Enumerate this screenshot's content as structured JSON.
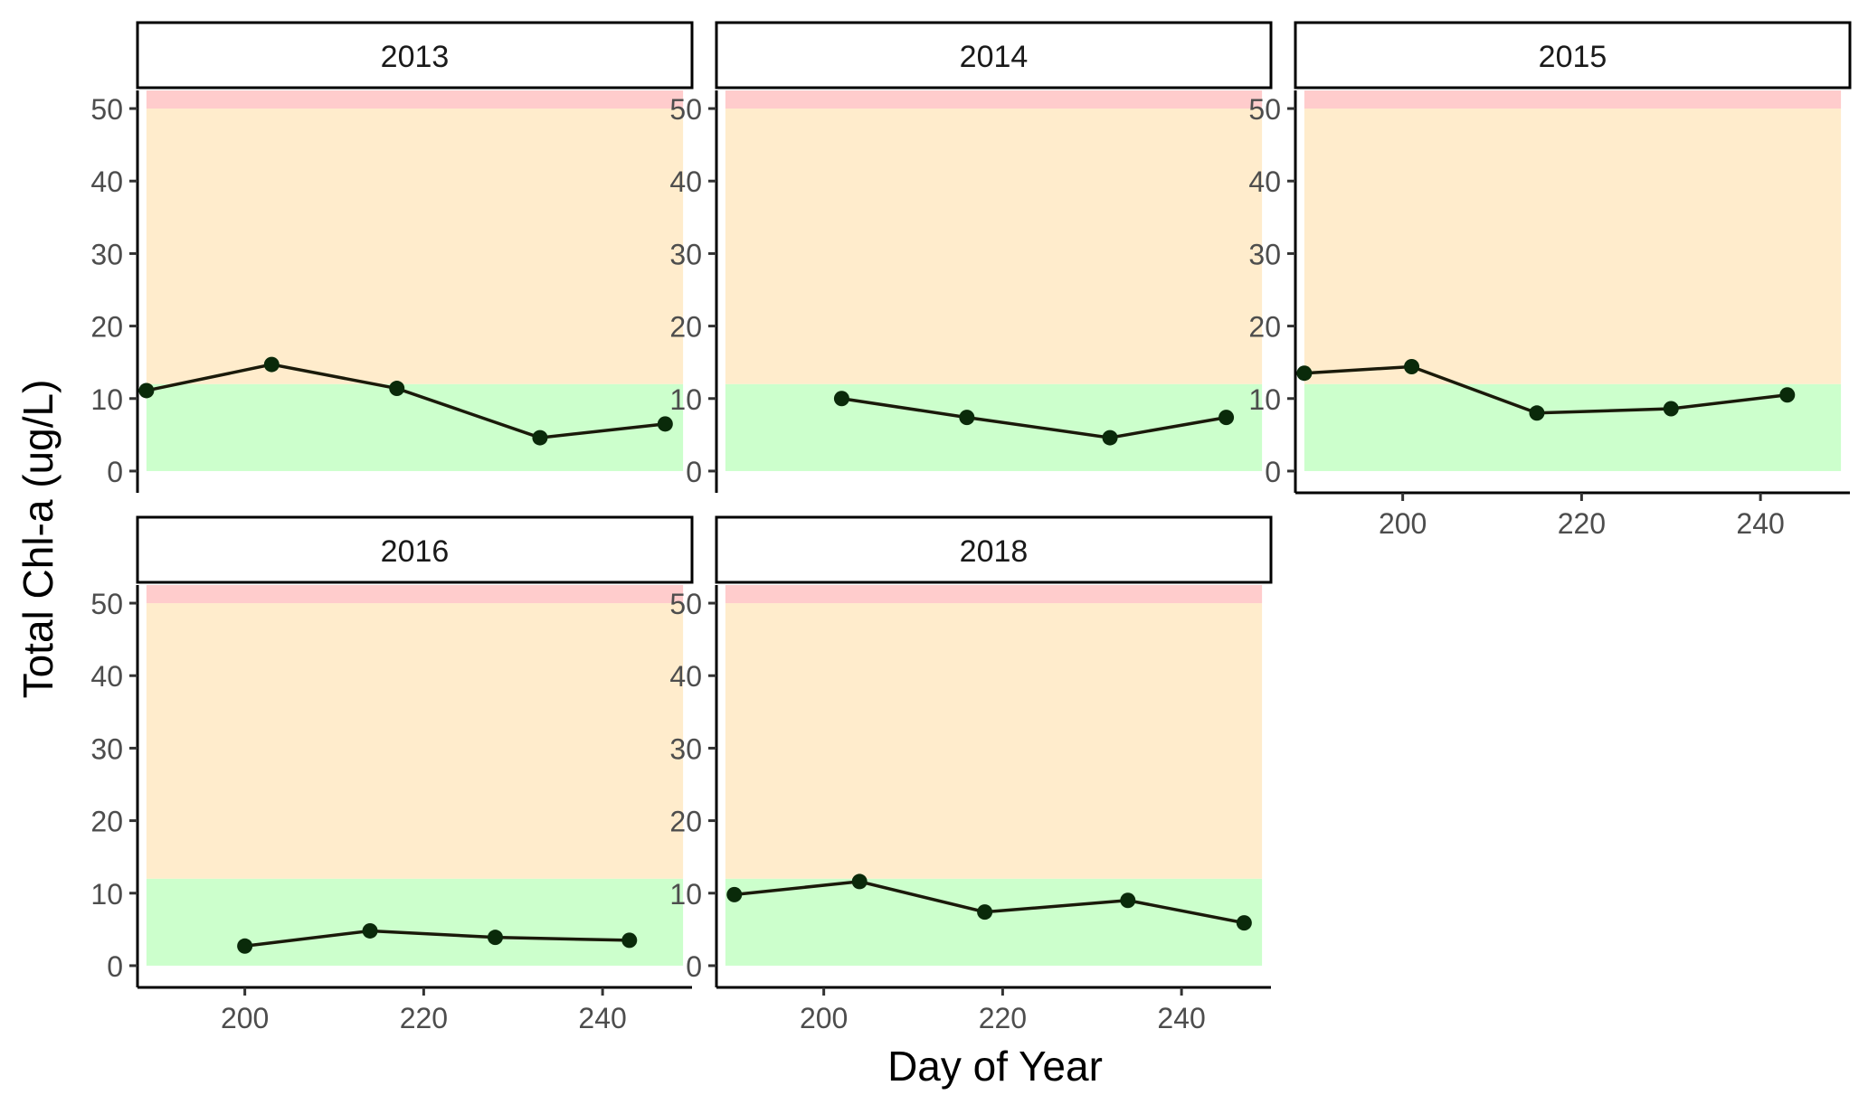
{
  "chart_data": {
    "type": "line",
    "xlabel": "Day of Year",
    "ylabel": "Total Chl-a (ug/L)",
    "xlim": [
      188,
      250
    ],
    "ylim": [
      -3,
      52.5
    ],
    "x_ticks": [
      200,
      220,
      240
    ],
    "y_ticks": [
      0,
      10,
      20,
      30,
      40,
      50
    ],
    "grid": false,
    "legend": "none",
    "bands": [
      {
        "from": 0,
        "to": 12,
        "color": "#ccffcc"
      },
      {
        "from": 12,
        "to": 50,
        "color": "#ffeccc"
      },
      {
        "from": 50,
        "to": 52.5,
        "color": "#ffcccc"
      }
    ],
    "band_x_range": [
      189,
      249
    ],
    "colors": {
      "line": "#1a1a0a",
      "point": "#0a2a0a",
      "axis": "#000000",
      "tick_label": "#4d4d4d"
    },
    "panels": [
      {
        "title": "2013",
        "x": [
          189,
          203,
          217,
          233,
          247
        ],
        "y": [
          11.1,
          14.7,
          11.4,
          4.6,
          6.5
        ]
      },
      {
        "title": "2014",
        "x": [
          202,
          216,
          232,
          245
        ],
        "y": [
          10.0,
          7.4,
          4.6,
          7.4
        ]
      },
      {
        "title": "2015",
        "x": [
          189,
          201,
          215,
          230,
          243
        ],
        "y": [
          13.5,
          14.4,
          8.0,
          8.6,
          10.5
        ]
      },
      {
        "title": "2016",
        "x": [
          200,
          214,
          228,
          243
        ],
        "y": [
          2.7,
          4.8,
          3.9,
          3.5
        ]
      },
      {
        "title": "2018",
        "x": [
          190,
          204,
          218,
          234,
          247
        ],
        "y": [
          9.8,
          11.6,
          7.4,
          9.0,
          5.9
        ]
      }
    ]
  }
}
